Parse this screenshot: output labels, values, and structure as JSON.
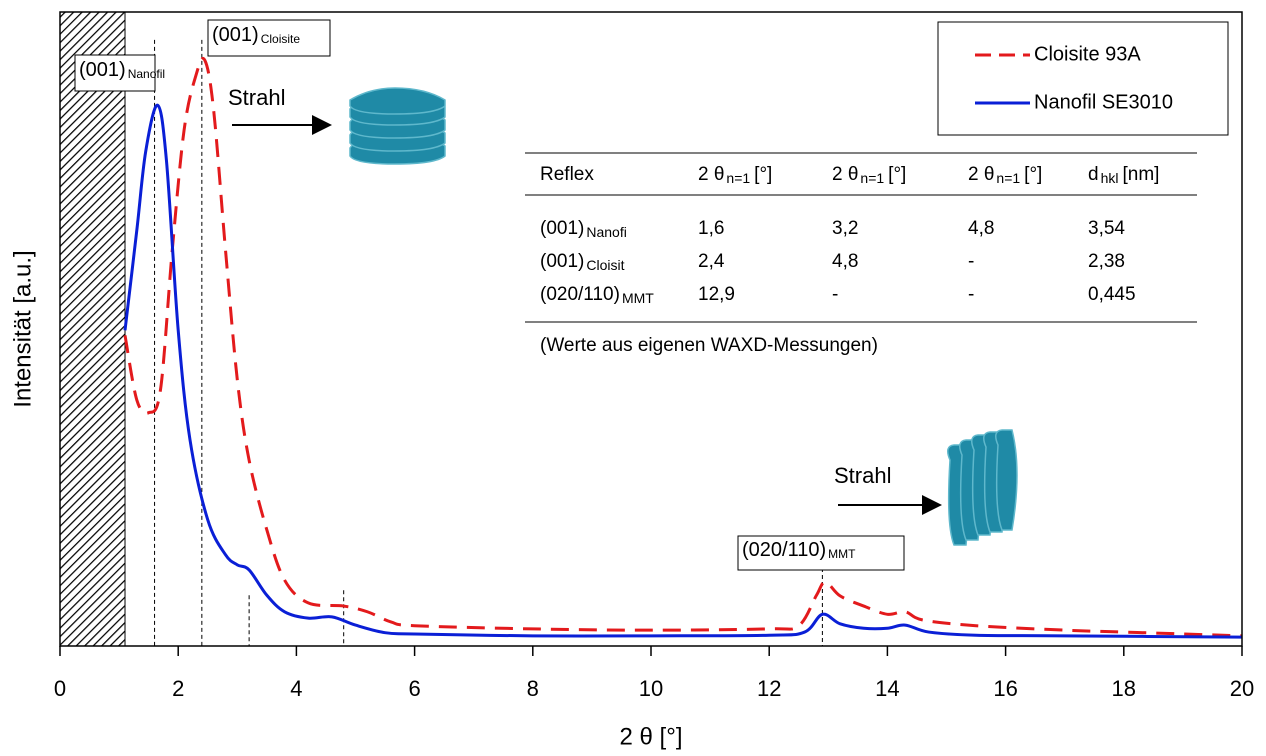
{
  "chart_data": {
    "type": "line",
    "x_label": "2 θ [°]",
    "y_label": "Intensität [a.u.]",
    "xlim": [
      0,
      20
    ],
    "xticks": [
      0,
      2,
      4,
      6,
      8,
      10,
      12,
      14,
      16,
      18,
      20
    ],
    "ylim": [
      0,
      100
    ],
    "excluded_range": [
      0,
      1.1
    ],
    "legend": "top-right",
    "series": [
      {
        "name": "Cloisite 93A",
        "color": "#e31a1c",
        "dashed": true,
        "x": [
          1.1,
          1.3,
          1.5,
          1.7,
          1.9,
          2.1,
          2.3,
          2.45,
          2.6,
          2.8,
          3.0,
          3.2,
          3.5,
          3.8,
          4.2,
          4.8,
          5.2,
          5.6,
          6,
          8,
          10,
          12,
          12.5,
          12.8,
          12.95,
          13.2,
          13.6,
          14.0,
          14.3,
          14.6,
          15.5,
          17,
          18,
          19,
          20
        ],
        "values": [
          49,
          38.8,
          36.8,
          40.4,
          62.5,
          81.4,
          90,
          92.4,
          84.5,
          62.5,
          42,
          29.3,
          18.3,
          10.4,
          6.8,
          6.3,
          5.4,
          3.8,
          3.2,
          2.7,
          2.5,
          2.7,
          3.2,
          8,
          10.1,
          7.9,
          6.3,
          5,
          5.4,
          4.1,
          3.2,
          2.5,
          2.2,
          1.9,
          1.6
        ]
      },
      {
        "name": "Nanofil SE3010",
        "color": "#0a1fd6",
        "dashed": false,
        "x": [
          1.1,
          1.3,
          1.45,
          1.65,
          1.8,
          2.0,
          2.2,
          2.5,
          2.8,
          3.0,
          3.2,
          3.5,
          3.8,
          4.2,
          4.6,
          5.0,
          5.5,
          6,
          8,
          10,
          12,
          12.6,
          12.9,
          13.2,
          13.6,
          14.0,
          14.3,
          14.7,
          15.5,
          17,
          20
        ],
        "values": [
          49.8,
          65.6,
          78,
          85.3,
          76.7,
          49.8,
          32.5,
          19.9,
          14.4,
          12.8,
          12,
          8,
          5.4,
          4.4,
          4.6,
          3.3,
          2.1,
          1.9,
          1.6,
          1.6,
          1.7,
          2.2,
          5,
          3.5,
          2.8,
          2.8,
          3.3,
          2.2,
          1.7,
          1.6,
          1.4
        ]
      }
    ],
    "reference_lines": [
      {
        "x": 1.6,
        "top": 95.6
      },
      {
        "x": 2.4,
        "top": 95.6
      },
      {
        "x": 3.2,
        "top": 8
      },
      {
        "x": 4.8,
        "top": 8.8
      },
      {
        "x": 12.9,
        "top": 12.3
      }
    ],
    "annotations": [
      {
        "text": "(001)",
        "sub": "Nanofil"
      },
      {
        "text": "(001)",
        "sub": "Cloisite"
      },
      {
        "text": "(020/110)",
        "sub": "MMT"
      },
      {
        "text": "Strahl"
      },
      {
        "text": "Strahl"
      }
    ],
    "inset_table": {
      "header": [
        {
          "text": "Reflex"
        },
        {
          "text": "2 θ",
          "sub": "n=1",
          "tail": "[°]"
        },
        {
          "text": "2 θ",
          "sub": "n=1",
          "tail": "[°]"
        },
        {
          "text": "2 θ",
          "sub": "n=1",
          "tail": "[°]"
        },
        {
          "text": "d",
          "sub": "hkl",
          "tail": "[nm]"
        }
      ],
      "rows": [
        [
          {
            "text": "(001)",
            "sub": "Nanofi"
          },
          "1,6",
          "3,2",
          "4,8",
          "3,54"
        ],
        [
          {
            "text": "(001)",
            "sub": "Cloisit"
          },
          "2,4",
          "4,8",
          "-",
          "2,38"
        ],
        [
          {
            "text": "(020/110)",
            "sub": "MMT"
          },
          "12,9",
          "-",
          "-",
          "0,445"
        ]
      ],
      "note": "(Werte aus eigenen WAXD-Messungen)"
    }
  }
}
